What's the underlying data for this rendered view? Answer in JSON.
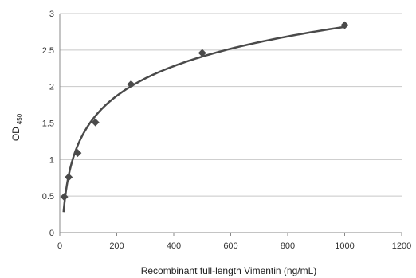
{
  "chart_data": {
    "type": "scatter",
    "title": "",
    "xlabel": "Recombinant full-length Vimentin (ng/mL)",
    "ylabel": "OD",
    "ylabel_subscript": "450",
    "xlim": [
      0,
      1200
    ],
    "ylim": [
      0,
      3
    ],
    "x_ticks": [
      0,
      200,
      400,
      600,
      800,
      1000,
      1200
    ],
    "y_ticks": [
      0,
      0.5,
      1,
      1.5,
      2,
      2.5,
      3
    ],
    "x_tick_labels": [
      "0",
      "200",
      "400",
      "600",
      "800",
      "1000",
      "1200"
    ],
    "y_tick_labels": [
      "0",
      "0.5",
      "1",
      "1.5",
      "2",
      "2.5",
      "3"
    ],
    "grid": "horizontal",
    "legend": "none",
    "series": [
      {
        "x": [
          15.6,
          31.25,
          62.5,
          125,
          250,
          500,
          1000
        ],
        "y": [
          0.49,
          0.76,
          1.09,
          1.51,
          2.03,
          2.46,
          2.84
        ],
        "marker": "diamond",
        "trendline": "logarithmic"
      }
    ],
    "colors": {
      "marker": "#4a4a4a",
      "curve": "#4a4a4a",
      "grid": "#c8c8c8"
    }
  }
}
